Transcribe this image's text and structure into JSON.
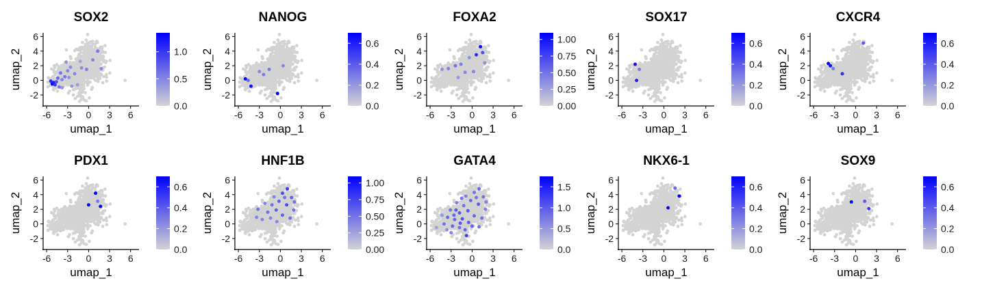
{
  "figure": {
    "colors": {
      "low": "#d3d3d3",
      "high": "#0000ff",
      "axis": "#000000"
    }
  },
  "chart_data": [
    {
      "type": "scatter",
      "title": "SOX2",
      "xlabel": "umap_1",
      "ylabel": "umap_2",
      "x_ticks": [
        "-6",
        "-3",
        "0",
        "3",
        "6"
      ],
      "y_ticks": [
        "-2",
        "0",
        "2",
        "4",
        "6"
      ],
      "xlim": [
        -6.5,
        7.2
      ],
      "ylim": [
        -3.5,
        6.5
      ],
      "grid": false,
      "legend": "right",
      "color_scale": {
        "min": 0,
        "max": 1.35,
        "ticks": [
          "0.0",
          "0.5",
          "1.0"
        ],
        "tick_values": [
          0,
          0.5,
          1.0
        ]
      },
      "highlight": [
        [
          -5.2,
          -0.5,
          1.35
        ],
        [
          -5.0,
          -0.3,
          1.2
        ],
        [
          -4.8,
          -0.6,
          1.0
        ],
        [
          -4.6,
          -0.2,
          0.8
        ],
        [
          -5.4,
          -0.1,
          1.1
        ],
        [
          -4.4,
          0.3,
          0.7
        ],
        [
          -4.2,
          -0.9,
          0.6
        ],
        [
          -3.8,
          0.1,
          0.5
        ],
        [
          -3.4,
          0.5,
          0.6
        ],
        [
          -3.0,
          1.3,
          0.5
        ],
        [
          -3.2,
          2.5,
          0.4
        ],
        [
          -2.6,
          1.8,
          0.45
        ],
        [
          -2.0,
          0.9,
          0.5
        ],
        [
          -1.6,
          -0.6,
          0.35
        ],
        [
          -1.0,
          1.7,
          0.45
        ],
        [
          -0.3,
          1.5,
          0.55
        ],
        [
          0.6,
          2.8,
          0.5
        ],
        [
          1.3,
          4.0,
          0.6
        ],
        [
          1.8,
          1.6,
          0.5
        ],
        [
          -2.4,
          -0.8,
          0.4
        ],
        [
          -3.8,
          -1.0,
          0.4
        ],
        [
          -4.0,
          1.0,
          0.6
        ],
        [
          -2.8,
          0.4,
          0.4
        ],
        [
          -1.2,
          2.6,
          0.3
        ]
      ]
    },
    {
      "type": "scatter",
      "title": "NANOG",
      "xlabel": "umap_1",
      "ylabel": "umap_2",
      "x_ticks": [
        "-6",
        "-3",
        "0",
        "3",
        "6"
      ],
      "y_ticks": [
        "-2",
        "0",
        "2",
        "4",
        "6"
      ],
      "xlim": [
        -6.5,
        7.2
      ],
      "ylim": [
        -3.5,
        6.5
      ],
      "grid": false,
      "legend": "right",
      "color_scale": {
        "min": 0,
        "max": 0.7,
        "ticks": [
          "0.0",
          "0.2",
          "0.4",
          "0.6"
        ],
        "tick_values": [
          0,
          0.2,
          0.4,
          0.6
        ]
      },
      "highlight": [
        [
          -5.0,
          0.2,
          0.7
        ],
        [
          -4.2,
          -0.8,
          0.65
        ],
        [
          -0.4,
          -1.8,
          0.7
        ],
        [
          -2.4,
          0.8,
          0.3
        ],
        [
          -4.6,
          0.0,
          0.35
        ],
        [
          -1.6,
          1.5,
          0.3
        ],
        [
          -3.0,
          1.2,
          0.25
        ],
        [
          0.4,
          2.0,
          0.25
        ]
      ]
    },
    {
      "type": "scatter",
      "title": "FOXA2",
      "xlabel": "umap_1",
      "ylabel": "umap_2",
      "x_ticks": [
        "-6",
        "-3",
        "0",
        "3",
        "6"
      ],
      "y_ticks": [
        "-2",
        "0",
        "2",
        "4",
        "6"
      ],
      "xlim": [
        -6.5,
        7.2
      ],
      "ylim": [
        -3.5,
        6.5
      ],
      "grid": false,
      "legend": "right",
      "color_scale": {
        "min": 0,
        "max": 1.1,
        "ticks": [
          "0.00",
          "0.25",
          "0.50",
          "0.75",
          "1.00"
        ],
        "tick_values": [
          0,
          0.25,
          0.5,
          0.75,
          1.0
        ]
      },
      "highlight": [
        [
          1.2,
          4.6,
          1.05
        ],
        [
          0.6,
          3.5,
          0.9
        ],
        [
          1.5,
          3.8,
          0.7
        ],
        [
          -2.4,
          2.0,
          0.5
        ],
        [
          -3.4,
          1.6,
          0.45
        ],
        [
          -1.0,
          1.1,
          0.4
        ],
        [
          -1.6,
          2.2,
          0.45
        ],
        [
          0.2,
          1.2,
          0.4
        ],
        [
          -4.3,
          1.5,
          0.35
        ],
        [
          -2.0,
          0.4,
          0.3
        ],
        [
          -0.4,
          3.1,
          0.35
        ],
        [
          1.8,
          2.4,
          0.35
        ]
      ]
    },
    {
      "type": "scatter",
      "title": "SOX17",
      "xlabel": "umap_1",
      "ylabel": "umap_2",
      "x_ticks": [
        "-6",
        "-3",
        "0",
        "3",
        "6"
      ],
      "y_ticks": [
        "-2",
        "0",
        "2",
        "4",
        "6"
      ],
      "xlim": [
        -6.5,
        7.2
      ],
      "ylim": [
        -3.5,
        6.5
      ],
      "grid": false,
      "legend": "right",
      "color_scale": {
        "min": 0,
        "max": 0.7,
        "ticks": [
          "0.0",
          "0.2",
          "0.4",
          "0.6"
        ],
        "tick_values": [
          0,
          0.2,
          0.4,
          0.6
        ]
      },
      "highlight": [
        [
          -4.1,
          2.2,
          0.65
        ],
        [
          -3.9,
          0.0,
          0.6
        ],
        [
          -3.5,
          1.5,
          0.3
        ]
      ]
    },
    {
      "type": "scatter",
      "title": "CXCR4",
      "xlabel": "umap_1",
      "ylabel": "umap_2",
      "x_ticks": [
        "-6",
        "-3",
        "0",
        "3",
        "6"
      ],
      "y_ticks": [
        "-2",
        "0",
        "2",
        "4",
        "6"
      ],
      "xlim": [
        -6.5,
        7.2
      ],
      "ylim": [
        -3.5,
        6.5
      ],
      "grid": false,
      "legend": "right",
      "color_scale": {
        "min": 0,
        "max": 0.7,
        "ticks": [
          "0.0",
          "0.2",
          "0.4",
          "0.6"
        ],
        "tick_values": [
          0,
          0.2,
          0.4,
          0.6
        ]
      },
      "highlight": [
        [
          -3.9,
          2.3,
          0.7
        ],
        [
          -3.6,
          2.0,
          0.65
        ],
        [
          -1.9,
          0.9,
          0.55
        ],
        [
          1.1,
          5.1,
          0.4
        ],
        [
          -3.2,
          1.6,
          0.3
        ]
      ]
    },
    {
      "type": "scatter",
      "title": "PDX1",
      "xlabel": "umap_1",
      "ylabel": "umap_2",
      "x_ticks": [
        "-6",
        "-3",
        "0",
        "3",
        "6"
      ],
      "y_ticks": [
        "-2",
        "0",
        "2",
        "4",
        "6"
      ],
      "xlim": [
        -6.5,
        7.2
      ],
      "ylim": [
        -3.5,
        6.5
      ],
      "grid": false,
      "legend": "right",
      "color_scale": {
        "min": 0,
        "max": 0.7,
        "ticks": [
          "0.0",
          "0.2",
          "0.4",
          "0.6"
        ],
        "tick_values": [
          0,
          0.2,
          0.4,
          0.6
        ]
      },
      "highlight": [
        [
          1.0,
          4.2,
          0.7
        ],
        [
          0.0,
          2.6,
          0.7
        ],
        [
          1.7,
          2.4,
          0.7
        ],
        [
          1.3,
          3.1,
          0.3
        ]
      ]
    },
    {
      "type": "scatter",
      "title": "HNF1B",
      "xlabel": "umap_1",
      "ylabel": "umap_2",
      "x_ticks": [
        "-6",
        "-3",
        "0",
        "3",
        "6"
      ],
      "y_ticks": [
        "-2",
        "0",
        "2",
        "4",
        "6"
      ],
      "xlim": [
        -6.5,
        7.2
      ],
      "ylim": [
        -3.5,
        6.5
      ],
      "grid": false,
      "legend": "right",
      "color_scale": {
        "min": 0,
        "max": 1.1,
        "ticks": [
          "0.00",
          "0.25",
          "0.50",
          "0.75",
          "1.00"
        ],
        "tick_values": [
          0,
          0.25,
          0.5,
          0.75,
          1.0
        ]
      },
      "highlight": [
        [
          1.0,
          4.8,
          0.8
        ],
        [
          0.3,
          4.2,
          0.7
        ],
        [
          1.6,
          3.6,
          0.6
        ],
        [
          -0.2,
          3.1,
          0.6
        ],
        [
          0.9,
          2.6,
          0.7
        ],
        [
          1.9,
          1.9,
          0.5
        ],
        [
          -0.6,
          1.9,
          0.6
        ],
        [
          0.3,
          1.2,
          0.6
        ],
        [
          -1.2,
          2.6,
          0.5
        ],
        [
          -1.8,
          1.6,
          0.5
        ],
        [
          -2.6,
          0.6,
          0.4
        ],
        [
          -3.2,
          2.0,
          0.5
        ],
        [
          -0.5,
          0.3,
          0.4
        ],
        [
          1.4,
          0.8,
          0.5
        ],
        [
          -2.2,
          2.8,
          0.4
        ],
        [
          0.6,
          3.6,
          0.5
        ],
        [
          -1.4,
          0.8,
          0.4
        ],
        [
          2.0,
          3.0,
          0.5
        ],
        [
          -3.4,
          0.9,
          0.4
        ],
        [
          -0.9,
          3.7,
          0.4
        ]
      ]
    },
    {
      "type": "scatter",
      "title": "GATA4",
      "xlabel": "umap_1",
      "ylabel": "umap_2",
      "x_ticks": [
        "-6",
        "-3",
        "0",
        "3",
        "6"
      ],
      "y_ticks": [
        "-2",
        "0",
        "2",
        "4",
        "6"
      ],
      "xlim": [
        -6.5,
        7.2
      ],
      "ylim": [
        -3.5,
        6.5
      ],
      "grid": false,
      "legend": "right",
      "color_scale": {
        "min": 0,
        "max": 1.75,
        "ticks": [
          "0.0",
          "0.5",
          "1.0",
          "1.5"
        ],
        "tick_values": [
          0,
          0.5,
          1.0,
          1.5
        ]
      },
      "highlight": [
        [
          1.0,
          4.8,
          0.9
        ],
        [
          0.3,
          4.3,
          0.8
        ],
        [
          1.6,
          3.7,
          0.8
        ],
        [
          -0.2,
          3.2,
          0.9
        ],
        [
          0.9,
          2.7,
          1.0
        ],
        [
          1.9,
          2.0,
          0.7
        ],
        [
          -0.6,
          1.8,
          1.0
        ],
        [
          0.3,
          1.1,
          0.9
        ],
        [
          -1.2,
          2.5,
          0.8
        ],
        [
          -1.8,
          1.5,
          1.0
        ],
        [
          -2.5,
          0.6,
          0.9
        ],
        [
          -3.1,
          1.9,
          0.8
        ],
        [
          -0.5,
          0.2,
          1.0
        ],
        [
          1.4,
          0.8,
          0.8
        ],
        [
          -2.2,
          2.9,
          0.7
        ],
        [
          0.6,
          3.6,
          0.8
        ],
        [
          -1.4,
          0.7,
          1.1
        ],
        [
          2.0,
          3.0,
          0.7
        ],
        [
          -3.5,
          0.9,
          0.9
        ],
        [
          -0.9,
          3.8,
          0.7
        ],
        [
          -4.0,
          0.0,
          0.8
        ],
        [
          -2.8,
          -0.3,
          0.9
        ],
        [
          -1.8,
          -0.5,
          0.8
        ],
        [
          -3.6,
          -0.8,
          0.6
        ],
        [
          -1.0,
          -0.8,
          0.9
        ],
        [
          -2.3,
          1.9,
          1.0
        ],
        [
          -1.5,
          3.5,
          0.8
        ],
        [
          0.0,
          -0.3,
          0.9
        ],
        [
          -4.3,
          1.2,
          0.5
        ],
        [
          -5.1,
          -0.5,
          0.4
        ],
        [
          -3.0,
          -1.2,
          0.7
        ],
        [
          -0.8,
          -1.6,
          1.2
        ],
        [
          1.0,
          -0.4,
          0.8
        ],
        [
          -1.7,
          0.1,
          1.0
        ],
        [
          -2.6,
          1.2,
          0.9
        ]
      ]
    },
    {
      "type": "scatter",
      "title": "NKX6-1",
      "xlabel": "umap_1",
      "ylabel": "umap_2",
      "x_ticks": [
        "-6",
        "-3",
        "0",
        "3",
        "6"
      ],
      "y_ticks": [
        "-2",
        "0",
        "2",
        "4",
        "6"
      ],
      "xlim": [
        -6.5,
        7.2
      ],
      "ylim": [
        -3.5,
        6.5
      ],
      "grid": false,
      "legend": "right",
      "color_scale": {
        "min": 0,
        "max": 0.7,
        "ticks": [
          "0.0",
          "0.2",
          "0.4",
          "0.6"
        ],
        "tick_values": [
          0,
          0.2,
          0.4,
          0.6
        ]
      },
      "highlight": [
        [
          2.2,
          3.8,
          0.7
        ],
        [
          0.6,
          2.2,
          0.7
        ],
        [
          1.6,
          4.9,
          0.35
        ]
      ]
    },
    {
      "type": "scatter",
      "title": "SOX9",
      "xlabel": "umap_1",
      "ylabel": "umap_2",
      "x_ticks": [
        "-6",
        "-3",
        "0",
        "3",
        "6"
      ],
      "y_ticks": [
        "-2",
        "0",
        "2",
        "4",
        "6"
      ],
      "xlim": [
        -6.5,
        7.2
      ],
      "ylim": [
        -3.5,
        6.5
      ],
      "grid": false,
      "legend": "right",
      "color_scale": {
        "min": 0,
        "max": 0.7,
        "ticks": [
          "0.0",
          "0.2",
          "0.4",
          "0.6"
        ],
        "tick_values": [
          0,
          0.2,
          0.4,
          0.6
        ]
      },
      "highlight": [
        [
          -0.6,
          3.0,
          0.7
        ],
        [
          1.3,
          3.1,
          0.4
        ],
        [
          1.9,
          2.1,
          0.5
        ]
      ]
    }
  ]
}
